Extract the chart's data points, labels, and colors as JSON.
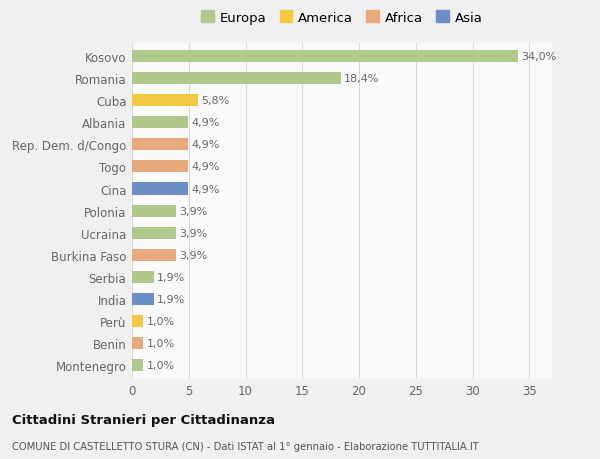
{
  "countries": [
    "Kosovo",
    "Romania",
    "Cuba",
    "Albania",
    "Rep. Dem. d/Congo",
    "Togo",
    "Cina",
    "Polonia",
    "Ucraina",
    "Burkina Faso",
    "Serbia",
    "India",
    "Perù",
    "Benin",
    "Montenegro"
  ],
  "values": [
    34.0,
    18.4,
    5.8,
    4.9,
    4.9,
    4.9,
    4.9,
    3.9,
    3.9,
    3.9,
    1.9,
    1.9,
    1.0,
    1.0,
    1.0
  ],
  "labels": [
    "34,0%",
    "18,4%",
    "5,8%",
    "4,9%",
    "4,9%",
    "4,9%",
    "4,9%",
    "3,9%",
    "3,9%",
    "3,9%",
    "1,9%",
    "1,9%",
    "1,0%",
    "1,0%",
    "1,0%"
  ],
  "continents": [
    "Europa",
    "Europa",
    "America",
    "Europa",
    "Africa",
    "Africa",
    "Asia",
    "Europa",
    "Europa",
    "Africa",
    "Europa",
    "Asia",
    "America",
    "Africa",
    "Europa"
  ],
  "continent_colors": {
    "Europa": "#aec98a",
    "America": "#f5c842",
    "Africa": "#e8a97e",
    "Asia": "#6b8fc4"
  },
  "legend_order": [
    "Europa",
    "America",
    "Africa",
    "Asia"
  ],
  "title": "Cittadini Stranieri per Cittadinanza",
  "subtitle": "COMUNE DI CASTELLETTO STURA (CN) - Dati ISTAT al 1° gennaio - Elaborazione TUTTITALIA.IT",
  "xlim": [
    0,
    37
  ],
  "xticks": [
    0,
    5,
    10,
    15,
    20,
    25,
    30,
    35
  ],
  "background_color": "#f0f0f0",
  "bar_background": "#fafafa",
  "grid_color": "#d8d8d8",
  "label_color": "#666666",
  "title_color": "#111111",
  "subtitle_color": "#555555"
}
